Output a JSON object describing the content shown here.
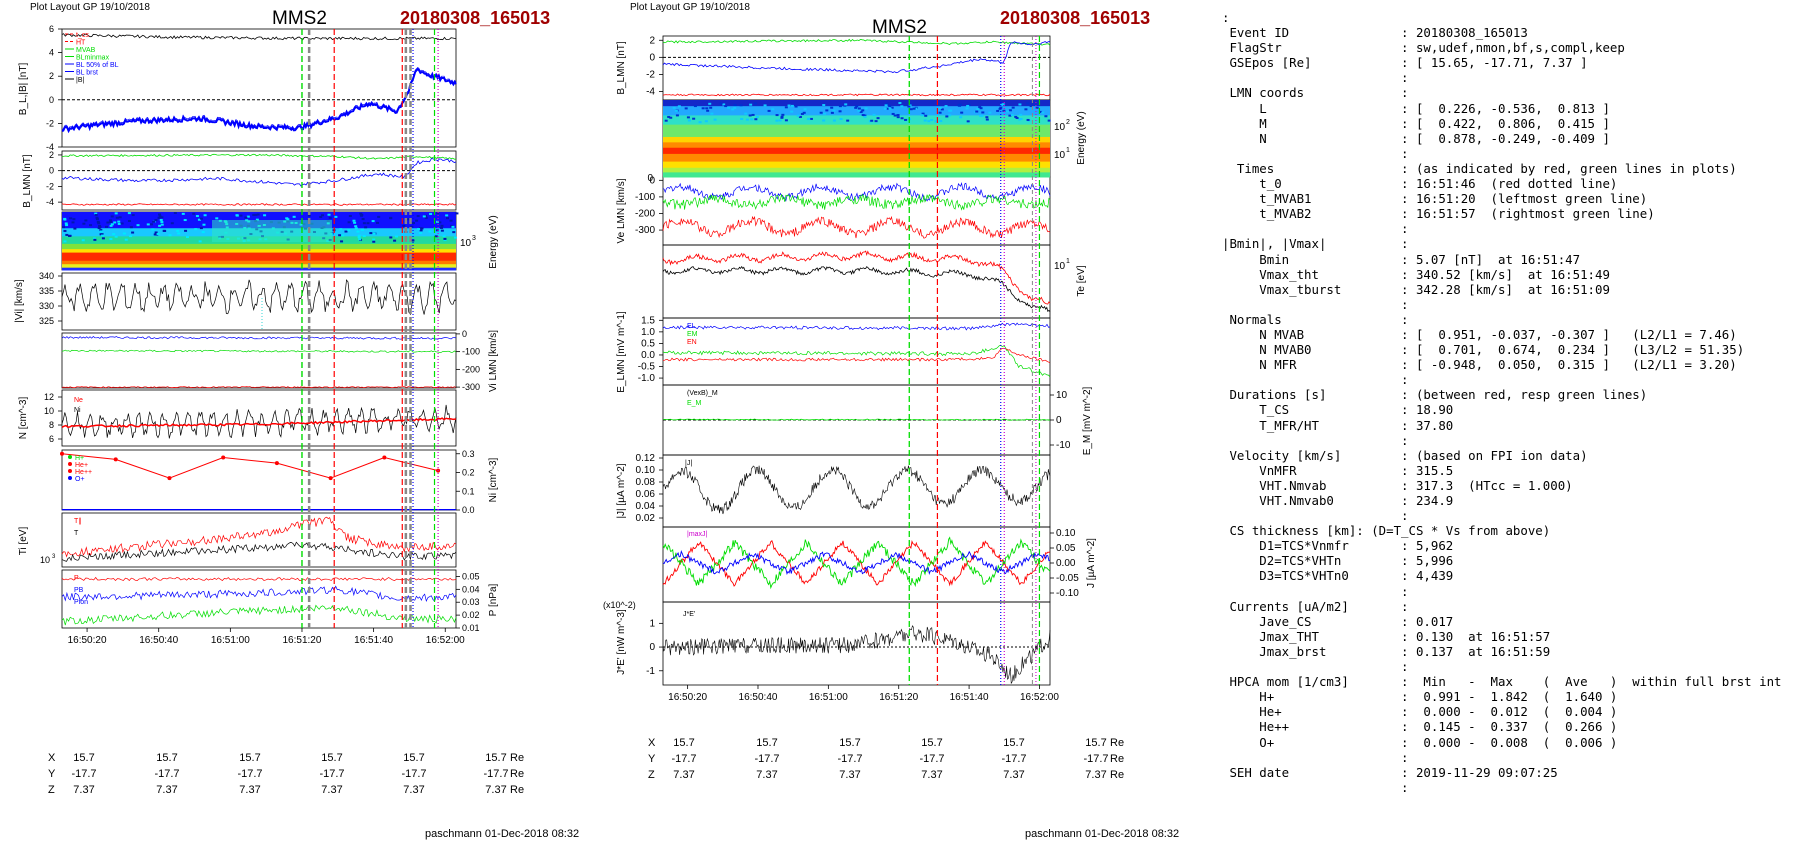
{
  "page": {
    "layout_label": "Plot Layout GP 19/10/2018",
    "spacecraft": "MMS2",
    "event": "20180308_165013",
    "footer": "paschmann 01-Dec-2018 08:32"
  },
  "position_table": {
    "rows": [
      {
        "label": "X",
        "values": [
          "15.7",
          "15.7",
          "15.7",
          "15.7",
          "15.7",
          "15.7"
        ],
        "unit": "Re"
      },
      {
        "label": "Y",
        "values": [
          "-17.7",
          "-17.7",
          "-17.7",
          "-17.7",
          "-17.7",
          "-17.7"
        ],
        "unit": "Re"
      },
      {
        "label": "Z",
        "values": [
          "7.37",
          "7.37",
          "7.37",
          "7.37",
          "7.37",
          "7.37"
        ],
        "unit": "Re"
      }
    ]
  },
  "time_ticks": [
    "16:50:20",
    "16:50:40",
    "16:51:00",
    "16:51:20",
    "16:51:40",
    "16:52:00"
  ],
  "info_lines": [
    ":",
    " Event ID               : 20180308_165013",
    " FlagStr                : sw,udef,nmon,bf,s,compl,keep",
    " GSEpos [Re]            : [ 15.65, -17.71, 7.37 ]",
    "                        :",
    " LMN coords             :",
    "     L                  : [  0.226, -0.536,  0.813 ]",
    "     M                  : [  0.422,  0.806,  0.415 ]",
    "     N                  : [  0.878, -0.249, -0.409 ]",
    "                        :",
    "  Times                 : (as indicated by red, green lines in plots)",
    "     t_0                : 16:51:46  (red dotted line)",
    "     t_MVAB1            : 16:51:20  (leftmost green line)",
    "     t_MVAB2            : 16:51:57  (rightmost green line)",
    "                        :",
    "|Bmin|, |Vmax|          :",
    "     Bmin               : 5.07 [nT]  at 16:51:47",
    "     Vmax_tht           : 340.52 [km/s]  at 16:51:49",
    "     Vmax_tburst        : 342.28 [km/s]  at 16:51:09",
    "                        :",
    " Normals                :",
    "     N MVAB             : [  0.951, -0.037, -0.307 ]   (L2/L1 = 7.46)",
    "     N MVAB0            : [  0.701,  0.674,  0.234 ]   (L3/L2 = 51.35)",
    "     N MFR              : [ -0.948,  0.050,  0.315 ]   (L2/L1 = 3.20)",
    "                        :",
    " Durations [s]          : (between red, resp green lines)",
    "     T_CS               : 18.90",
    "     T_MFR/HT           : 37.80",
    "                        :",
    " Velocity [km/s]        : (based on FPI ion data)",
    "     VnMFR              : 315.5",
    "     VHT.Nmvab          : 317.3  (HTcc = 1.000)",
    "     VHT.Nmvab0         : 234.9",
    "                        :",
    " CS thickness [km]: (D=T_CS * Vs from above)",
    "     D1=TCS*Vnmfr       : 5,962",
    "     D2=TCS*VHTn        : 5,996",
    "     D3=TCS*VHTn0       : 4,439",
    "                        :",
    " Currents [uA/m2]       :",
    "     Jave_CS            : 0.017",
    "     Jmax_THT           : 0.130  at 16:51:57",
    "     Jmax_brst          : 0.137  at 16:51:59",
    "                        :",
    " HPCA mom [1/cm3]       :  Min   -  Max    (  Ave   )  within full brst int",
    "     H+                 :  0.991 -  1.842  (  1.640 )",
    "     He+                :  0.000 -  0.012  (  0.004 )",
    "     He++               :  0.145 -  0.337  (  0.266 )",
    "     O+                 :  0.000 -  0.008  (  0.006 )",
    "                        :",
    " SEH date               : 2019-11-29 09:07:25",
    "                        :"
  ],
  "colors": {
    "red": "#ff0000",
    "green": "#00dd00",
    "blue": "#0000ff",
    "black": "#000000",
    "magenta": "#cc00cc",
    "cyan": "#00cccc",
    "gray": "#888888"
  },
  "chart_data": [
    {
      "panel": "left",
      "type": "line",
      "x_range": [
        "16:50:13",
        "16:52:03"
      ],
      "x_ticks": [
        "16:50:20",
        "16:50:40",
        "16:51:00",
        "16:51:20",
        "16:51:40",
        "16:52:00"
      ],
      "event_lines": {
        "green_dashed": [
          "16:51:20",
          "16:51:57"
        ],
        "red_dashed": [
          "16:51:29",
          "16:51:48"
        ],
        "gray_dashed": [
          "16:51:22",
          "16:51:49",
          "16:51:50"
        ],
        "blue_dotted": [
          "16:51:51"
        ],
        "magenta_dotted": [
          "16:51:58"
        ]
      },
      "panels": [
        {
          "name": "B_L |B|",
          "ylabel": "B_L,|B| [nT]",
          "ylim": [
            -4,
            6
          ],
          "yticks": [
            "-4",
            "-2",
            "0",
            "2",
            "4",
            "6"
          ],
          "legend": [
            "t_cs",
            "HT",
            "MVAB",
            "BLminmax",
            "BL 50% of BL",
            "BL brst",
            "|B|"
          ],
          "series": [
            {
              "name": "|B|",
              "x": [
                0,
                20,
                40,
                60,
                67,
                80,
                95,
                110
              ],
              "y": [
                5.4,
                5.3,
                5.2,
                5.2,
                5.2,
                5.1,
                5.1,
                5.2
              ]
            },
            {
              "name": "BL",
              "x": [
                0,
                10,
                20,
                30,
                40,
                55,
                65,
                75,
                83,
                90,
                95,
                98,
                100,
                105,
                110
              ],
              "y": [
                -2.5,
                -2.0,
                -1.7,
                -1.8,
                -1.5,
                -2.4,
                -2.5,
                -1.3,
                -0.3,
                -1.2,
                0.5,
                2.6,
                2.2,
                1.5,
                1.4
              ]
            }
          ]
        },
        {
          "name": "B_LMN",
          "ylabel": "B_LMN [nT]",
          "ylim": [
            -5,
            2.5
          ],
          "yticks": [
            "-4",
            "-2",
            "0",
            "2"
          ],
          "series": [
            {
              "name": "BL",
              "x": [
                0,
                55,
                70,
                80,
                90,
                95,
                110
              ],
              "y": [
                1.9,
                2.0,
                1.9,
                1.6,
                1.8,
                2.2,
                1.4
              ]
            },
            {
              "name": "BM",
              "x": [
                0,
                20,
                40,
                60,
                70,
                80,
                90,
                95,
                100,
                110
              ],
              "y": [
                -0.9,
                -1.3,
                -1.0,
                -1.8,
                -1.2,
                -0.5,
                -0.8,
                0.4,
                1.5,
                1.2
              ]
            },
            {
              "name": "BN",
              "x": [
                0,
                110
              ],
              "y": [
                -4.3,
                -4.3
              ]
            }
          ]
        },
        {
          "name": "ion spectrogram",
          "ylabel": "Energy (eV)",
          "yticks": [
            "10^3"
          ]
        },
        {
          "name": "|Vi|",
          "ylabel": "|Vi| [km/s]",
          "ylim": [
            322,
            341
          ],
          "yticks": [
            "325",
            "330",
            "335",
            "340"
          ]
        },
        {
          "name": "Vi LMN",
          "ylabel": "Vi LMN [km/s]",
          "ylim": [
            -305,
            5
          ],
          "yticks": [
            "0",
            "-100",
            "-200",
            "-300"
          ]
        },
        {
          "name": "N",
          "ylabel": "N [cm^-3]",
          "ylim": [
            5,
            13
          ],
          "yticks": [
            "6",
            "8",
            "10",
            "12"
          ],
          "legend": [
            "Ne",
            "Ni"
          ]
        },
        {
          "name": "Ni HPCA",
          "ylabel": "Ni [cm^-3]",
          "ylim": [
            0,
            0.32
          ],
          "yticks": [
            "0.0",
            "0.1",
            "0.2",
            "0.3"
          ],
          "legend": [
            "H+",
            "He+",
            "He++",
            "O+"
          ],
          "series": [
            {
              "name": "He++",
              "x": [
                0,
                15,
                30,
                45,
                60,
                75,
                90,
                105
              ],
              "y": [
                0.3,
                0.27,
                0.17,
                0.28,
                0.25,
                0.17,
                0.28,
                0.21
              ]
            }
          ]
        },
        {
          "name": "Ti",
          "ylabel": "Ti [eV]",
          "yticks": [
            "10^3"
          ],
          "legend": [
            "T∥",
            "T"
          ]
        },
        {
          "name": "P",
          "ylabel": "P [nPa]",
          "ylim": [
            0.01,
            0.055
          ],
          "yticks": [
            "0.01",
            "0.02",
            "0.03",
            "0.04",
            "0.05"
          ],
          "legend": [
            "P",
            "PB",
            "Pion"
          ]
        }
      ]
    },
    {
      "panel": "middle",
      "type": "line",
      "x_range": [
        "16:50:13",
        "16:52:03"
      ],
      "x_ticks": [
        "16:50:20",
        "16:50:40",
        "16:51:00",
        "16:51:20",
        "16:51:40",
        "16:52:00"
      ],
      "panels": [
        {
          "name": "B_LMN",
          "ylabel": "B_LMN [nT]",
          "ylim": [
            -5,
            2.5
          ],
          "yticks": [
            "-4",
            "-2",
            "0",
            "2"
          ]
        },
        {
          "name": "electron spectrogram",
          "ylabel": "Energy (eV)",
          "yticks": [
            "10^1",
            "10^2"
          ]
        },
        {
          "name": "Ve LMN",
          "ylabel": "Ve LMN [km/s]",
          "ylim": [
            -390,
            20
          ],
          "yticks": [
            "0",
            "-100",
            "-200",
            "-300"
          ]
        },
        {
          "name": "Te",
          "ylabel": "Te [eV]",
          "yticks": [
            "10^1"
          ]
        },
        {
          "name": "E_LMN",
          "ylabel": "E_LMN [mV m^-1]",
          "ylim": [
            -1.3,
            1.6
          ],
          "yticks": [
            "-1.0",
            "-0.5",
            "0.0",
            "0.5",
            "1.0",
            "1.5"
          ],
          "legend": [
            "EL",
            "EM",
            "EN"
          ]
        },
        {
          "name": "E_M",
          "ylabel": "E_M [mV m^-2]",
          "ylim": [
            -14,
            14
          ],
          "yticks": [
            "-10",
            "0",
            "10"
          ],
          "legend": [
            "(VexB)_M",
            "E_M"
          ]
        },
        {
          "name": "|J|",
          "ylabel": "|J| [µA m^-2]",
          "ylim": [
            0.005,
            0.125
          ],
          "yticks": [
            "0.02",
            "0.04",
            "0.06",
            "0.08",
            "0.10",
            "0.12"
          ],
          "legend": [
            "|J|"
          ]
        },
        {
          "name": "J_LMN",
          "ylabel": "J [µA m^-2]",
          "ylim": [
            -0.13,
            0.12
          ],
          "yticks": [
            "-0.10",
            "-0.05",
            "0.00",
            "0.05",
            "0.10"
          ],
          "legend": [
            "|maxJ|"
          ]
        },
        {
          "name": "J*E'",
          "ylabel": "J*E' [nW m^-3]",
          "ylim": [
            -1.6,
            1.9
          ],
          "yticks": [
            "-1",
            "0",
            "1"
          ],
          "scale": "(x10^-2)",
          "legend": [
            "J*E'"
          ]
        }
      ]
    }
  ]
}
